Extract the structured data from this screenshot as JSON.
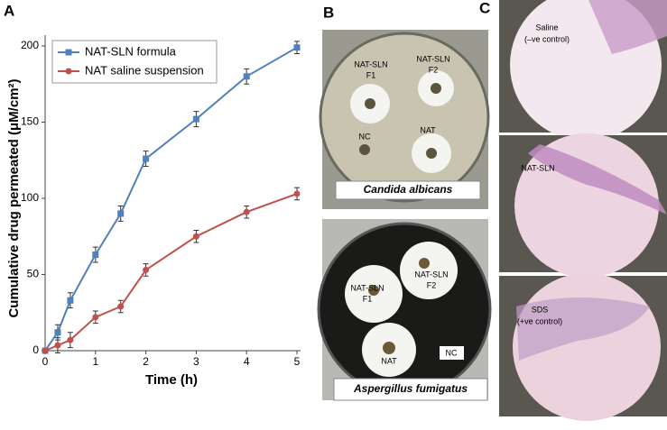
{
  "chart_data": {
    "type": "line",
    "panel_label": "A",
    "xlabel": "Time (h)",
    "ylabel": "Cumulative drug permeated (μM/cm²)",
    "x": [
      0,
      0.25,
      0.5,
      1,
      1.5,
      2,
      3,
      4,
      5
    ],
    "series": [
      {
        "name": "NAT-SLN formula",
        "color": "#4f81bd",
        "marker": "square",
        "values": [
          0,
          12,
          33,
          63,
          90,
          126,
          152,
          180,
          199
        ],
        "errors": [
          0,
          5,
          5,
          5,
          5,
          5,
          5,
          5,
          4
        ]
      },
      {
        "name": "NAT saline suspension",
        "color": "#c0504d",
        "marker": "circle",
        "values": [
          0,
          3.5,
          7,
          22,
          29,
          53,
          75,
          91,
          103
        ],
        "errors": [
          0,
          5,
          5,
          4,
          4,
          4,
          4,
          4,
          4
        ]
      }
    ],
    "xlim": [
      0,
      5
    ],
    "ylim": [
      0,
      200
    ],
    "xticks": [
      0,
      1,
      2,
      3,
      4,
      5
    ],
    "yticks": [
      0,
      50,
      100,
      150,
      200
    ],
    "grid": false,
    "legend": "upper left"
  },
  "panel_b": {
    "label": "B",
    "plates": [
      {
        "organism": "Candida albicans",
        "zones": [
          {
            "lines": [
              "NAT-SLN",
              "F1"
            ]
          },
          {
            "lines": [
              "NAT-SLN",
              "F2"
            ]
          },
          {
            "lines": [
              "NC"
            ]
          },
          {
            "lines": [
              "NAT"
            ]
          }
        ]
      },
      {
        "organism": "Aspergillus fumigatus",
        "zones": [
          {
            "lines": [
              "NAT-SLN",
              "F1"
            ]
          },
          {
            "lines": [
              "NAT-SLN",
              "F2"
            ]
          },
          {
            "lines": [
              "NAT"
            ]
          },
          {
            "lines": [
              "NC"
            ]
          }
        ]
      }
    ]
  },
  "panel_c": {
    "label": "C",
    "images": [
      {
        "lines": [
          "Saline",
          "(–ve control)"
        ]
      },
      {
        "lines": [
          "NAT-SLN"
        ]
      },
      {
        "lines": [
          "SDS",
          "(+ve control)"
        ]
      }
    ]
  }
}
